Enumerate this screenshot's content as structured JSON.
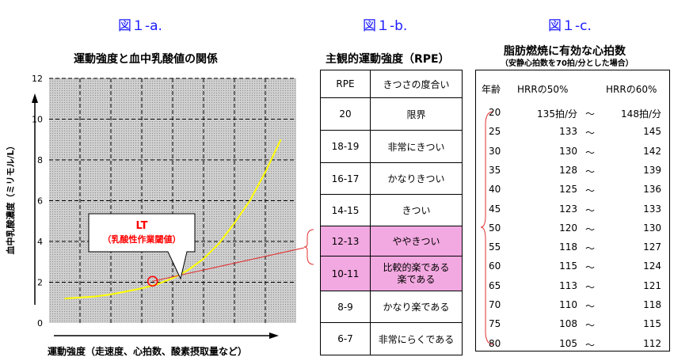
{
  "fig_a": {
    "label": "図１-a.",
    "title": "運動強度と血中乳酸値の関係",
    "callout_title": "LT",
    "callout_sub": "（乳酸性作業閾値）"
  },
  "fig_b": {
    "label": "図１-b.",
    "title": "主観的運動強度（RPE）",
    "header": [
      "RPE",
      "きつさの度合い"
    ],
    "rows": [
      {
        "rpe": "20",
        "desc": "限界"
      },
      {
        "rpe": "18-19",
        "desc": "非常にきつい"
      },
      {
        "rpe": "16-17",
        "desc": "かなりきつい"
      },
      {
        "rpe": "14-15",
        "desc": "きつい"
      },
      {
        "rpe": "12-13",
        "desc": "ややきつい"
      },
      {
        "rpe": "10-11",
        "desc": "比較的楽である",
        "desc2": "楽である"
      },
      {
        "rpe": "8-9",
        "desc": "かなり楽である"
      },
      {
        "rpe": "6-7",
        "desc": "非常にらくである"
      }
    ],
    "highlight_color": "#f2a8e0"
  },
  "fig_c": {
    "label": "図１-c.",
    "title": "脂肪燃焼に有効な心拍数",
    "subtitle": "（安静心拍数を70拍/分とした場合）",
    "header": [
      "年齢",
      "HRRの50%",
      "HRRの60%"
    ],
    "tilde": "～",
    "rows": [
      {
        "age": "20",
        "hrr50": "135拍/分",
        "hrr60": "148拍/分"
      },
      {
        "age": "25",
        "hrr50": "133",
        "hrr60": "145"
      },
      {
        "age": "30",
        "hrr50": "130",
        "hrr60": "142"
      },
      {
        "age": "35",
        "hrr50": "128",
        "hrr60": "139"
      },
      {
        "age": "40",
        "hrr50": "125",
        "hrr60": "136"
      },
      {
        "age": "45",
        "hrr50": "123",
        "hrr60": "133"
      },
      {
        "age": "50",
        "hrr50": "120",
        "hrr60": "130"
      },
      {
        "age": "55",
        "hrr50": "118",
        "hrr60": "127"
      },
      {
        "age": "60",
        "hrr50": "115",
        "hrr60": "124"
      },
      {
        "age": "65",
        "hrr50": "113",
        "hrr60": "121"
      },
      {
        "age": "70",
        "hrr50": "110",
        "hrr60": "118"
      },
      {
        "age": "75",
        "hrr50": "108",
        "hrr60": "115"
      },
      {
        "age": "80",
        "hrr50": "105",
        "hrr60": "112"
      }
    ]
  },
  "colors": {
    "label_blue": "#1a1aff",
    "curve": "#ffff00",
    "plot_bg": "#c0c0c0",
    "connector": "#e03030",
    "callout_text": "#ff0000"
  },
  "chart_data": {
    "type": "line",
    "title": "運動強度と血中乳酸値の関係",
    "xlabel": "運動強度（走速度、心拍数、酸素摂取量など）",
    "ylabel": "血中乳酸濃度（ミリモル/L）",
    "ylim": [
      0,
      12
    ],
    "yticks": [
      "0",
      "2",
      "4",
      "6",
      "8",
      "10",
      "12"
    ],
    "x_gridlines": 7,
    "grid": true,
    "series": [
      {
        "x": [
          0.5,
          1,
          1.5,
          2,
          2.5,
          3,
          3.5,
          4,
          4.5,
          5,
          5.5,
          6,
          6.5,
          7,
          7.5
        ],
        "values": [
          1.2,
          1.25,
          1.3,
          1.4,
          1.55,
          1.7,
          1.9,
          2.2,
          2.6,
          3.15,
          3.9,
          4.9,
          6.0,
          7.4,
          9.0
        ]
      }
    ],
    "annotation": {
      "label": "LT",
      "x": 3.35,
      "y": 2.05
    }
  }
}
